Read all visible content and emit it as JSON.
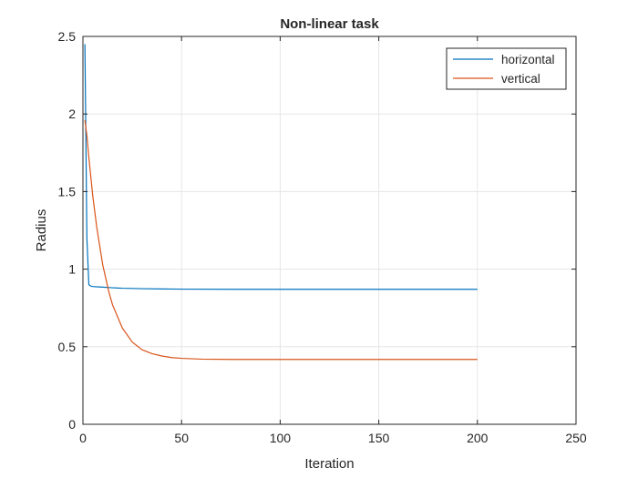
{
  "chart_data": {
    "type": "line",
    "title": "Non-linear task",
    "xlabel": "Iteration",
    "ylabel": "Radius",
    "xlim": [
      0,
      250
    ],
    "ylim": [
      0,
      2.5
    ],
    "xticks": [
      0,
      50,
      100,
      150,
      200,
      250
    ],
    "xtick_labels": [
      "0",
      "50",
      "100",
      "150",
      "200",
      "250"
    ],
    "yticks": [
      0,
      0.5,
      1,
      1.5,
      2,
      2.5
    ],
    "ytick_labels": [
      "0",
      "0.5",
      "1",
      "1.5",
      "2",
      "2.5"
    ],
    "grid": true,
    "legend_position": "top-right",
    "series": [
      {
        "name": "horizontal",
        "color": "#0072BD",
        "x": [
          1,
          2,
          3,
          4,
          5,
          7,
          10,
          15,
          20,
          30,
          40,
          50,
          75,
          100,
          150,
          200
        ],
        "y": [
          2.45,
          1.2,
          0.9,
          0.89,
          0.888,
          0.886,
          0.884,
          0.88,
          0.877,
          0.874,
          0.872,
          0.871,
          0.87,
          0.87,
          0.87,
          0.87
        ]
      },
      {
        "name": "vertical",
        "color": "#D95319",
        "x": [
          1,
          2,
          3,
          5,
          7,
          10,
          13,
          15,
          20,
          25,
          30,
          35,
          40,
          45,
          50,
          60,
          75,
          100,
          150,
          200
        ],
        "y": [
          1.96,
          1.86,
          1.72,
          1.47,
          1.27,
          1.03,
          0.86,
          0.77,
          0.62,
          0.53,
          0.48,
          0.455,
          0.44,
          0.43,
          0.425,
          0.42,
          0.418,
          0.418,
          0.418,
          0.418
        ]
      }
    ]
  },
  "colors": {
    "axis": "#262626",
    "grid": "#e6e6e6",
    "background": "#ffffff"
  }
}
